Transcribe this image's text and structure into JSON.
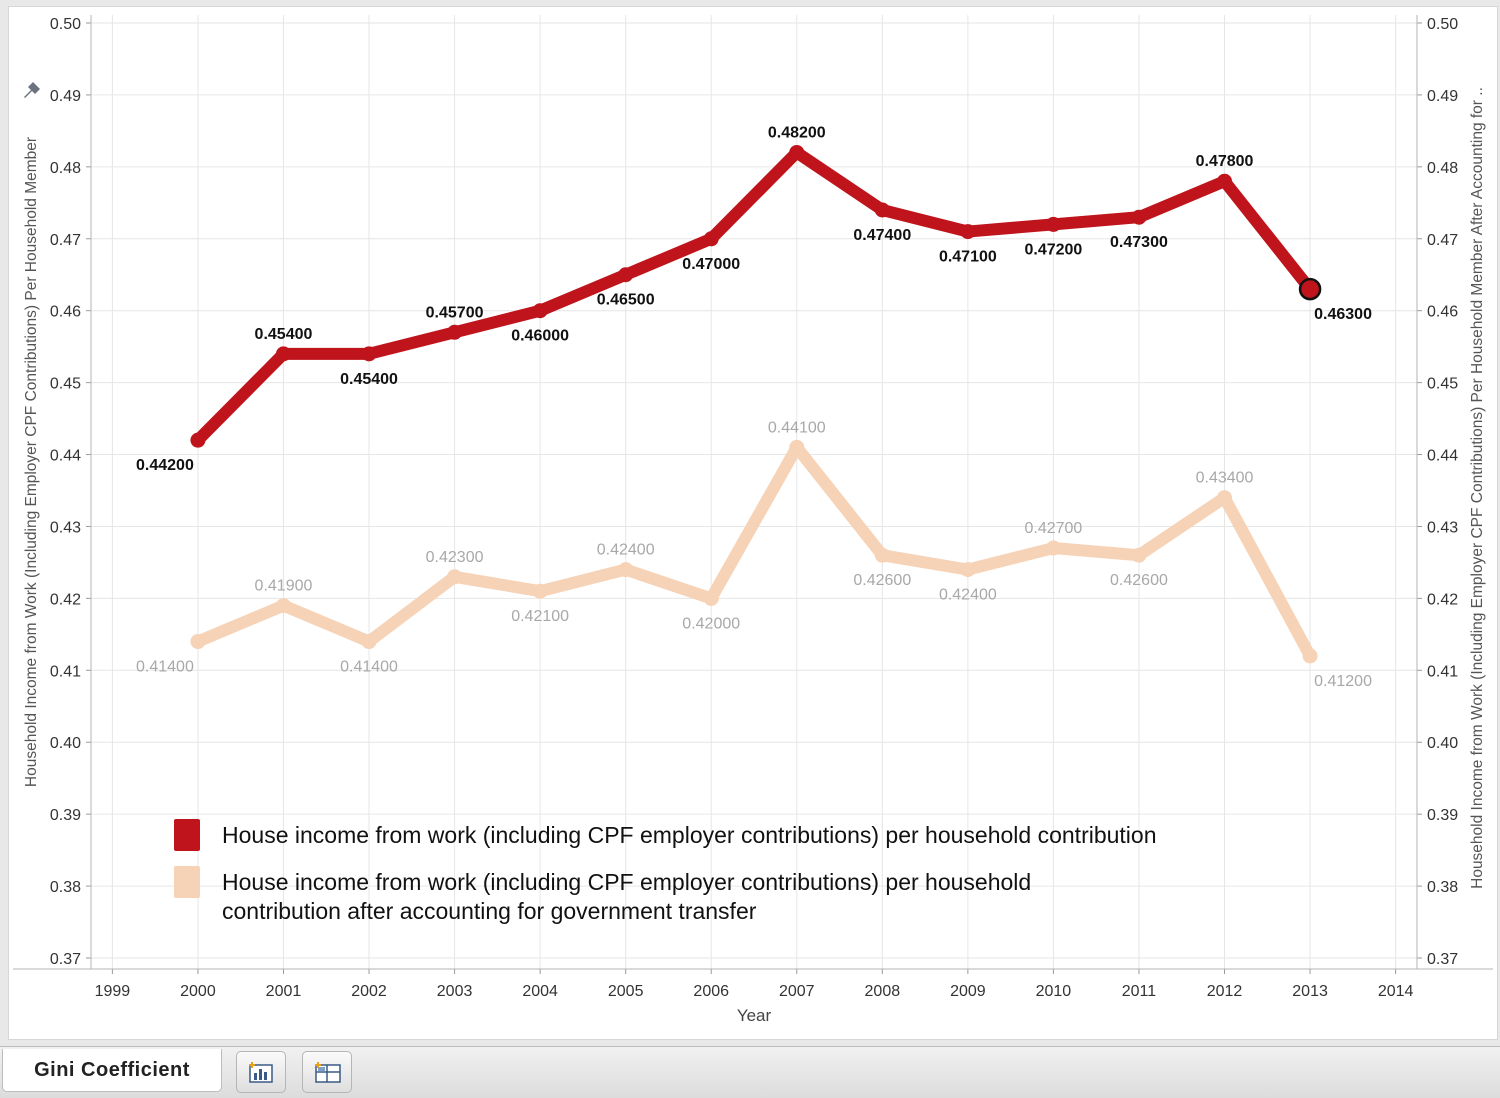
{
  "chart_data": {
    "type": "line",
    "xlabel": "Year",
    "ylabel_left": "Household Income from Work (Including Employer CPF Contributions) Per Household Member",
    "ylabel_right": "Household Income from Work (Including Employer CPF Contributions) Per Household Member After Accounting for ..",
    "ylim": [
      0.37,
      0.5
    ],
    "y_ticks": [
      "0.50",
      "0.49",
      "0.48",
      "0.47",
      "0.46",
      "0.45",
      "0.44",
      "0.43",
      "0.42",
      "0.41",
      "0.40",
      "0.39",
      "0.38",
      "0.37"
    ],
    "xlim": [
      1998.75,
      2014.25
    ],
    "x_ticks": [
      "1999",
      "2000",
      "2001",
      "2002",
      "2003",
      "2004",
      "2005",
      "2006",
      "2007",
      "2008",
      "2009",
      "2010",
      "2011",
      "2012",
      "2013",
      "2014"
    ],
    "x": [
      2000,
      2001,
      2002,
      2003,
      2004,
      2005,
      2006,
      2007,
      2008,
      2009,
      2010,
      2011,
      2012,
      2013
    ],
    "series": [
      {
        "name": "House income from work (including CPF employer contributions) per household contribution",
        "color": "#c0141c",
        "label_color": "#111111",
        "values": [
          0.442,
          0.454,
          0.454,
          0.457,
          0.46,
          0.465,
          0.47,
          0.482,
          0.474,
          0.471,
          0.472,
          0.473,
          0.478,
          0.463
        ],
        "labels": [
          "0.44200",
          "0.45400",
          "0.45400",
          "0.45700",
          "0.46000",
          "0.46500",
          "0.47000",
          "0.48200",
          "0.47400",
          "0.47100",
          "0.47200",
          "0.47300",
          "0.47800",
          "0.46300"
        ],
        "label_side": [
          "below",
          "above",
          "below",
          "above",
          "below",
          "below",
          "below",
          "above",
          "below",
          "below",
          "below",
          "below",
          "above",
          "below"
        ],
        "highlighted_index": 13
      },
      {
        "name": "House income from work (including CPF employer contributions) per household contribution after accounting for government transfer",
        "color": "#f6d2b6",
        "label_color": "#a8a8a8",
        "values": [
          0.414,
          0.419,
          0.414,
          0.423,
          0.421,
          0.424,
          0.42,
          0.441,
          0.426,
          0.424,
          0.427,
          0.426,
          0.434,
          0.412
        ],
        "labels": [
          "0.41400",
          "0.41900",
          "0.41400",
          "0.42300",
          "0.42100",
          "0.42400",
          "0.42000",
          "0.44100",
          "0.42600",
          "0.42400",
          "0.42700",
          "0.42600",
          "0.43400",
          "0.41200"
        ],
        "label_side": [
          "below",
          "above",
          "below",
          "above",
          "below",
          "above",
          "below",
          "above",
          "below",
          "below",
          "above",
          "below",
          "above",
          "below"
        ]
      }
    ],
    "legend": {
      "placement": "bottom-left",
      "items": [
        {
          "lines": [
            "House income from work (including CPF employer contributions) per household contribution"
          ],
          "color": "#c0141c"
        },
        {
          "lines": [
            "House income from work (including CPF employer contributions) per household",
            "contribution after accounting for government transfer"
          ],
          "color": "#f6d2b6"
        }
      ]
    }
  },
  "tabs": {
    "sheet_label": "Gini Coefficient",
    "new_worksheet_icon": "new-worksheet-icon",
    "new_dashboard_icon": "new-dashboard-icon"
  }
}
